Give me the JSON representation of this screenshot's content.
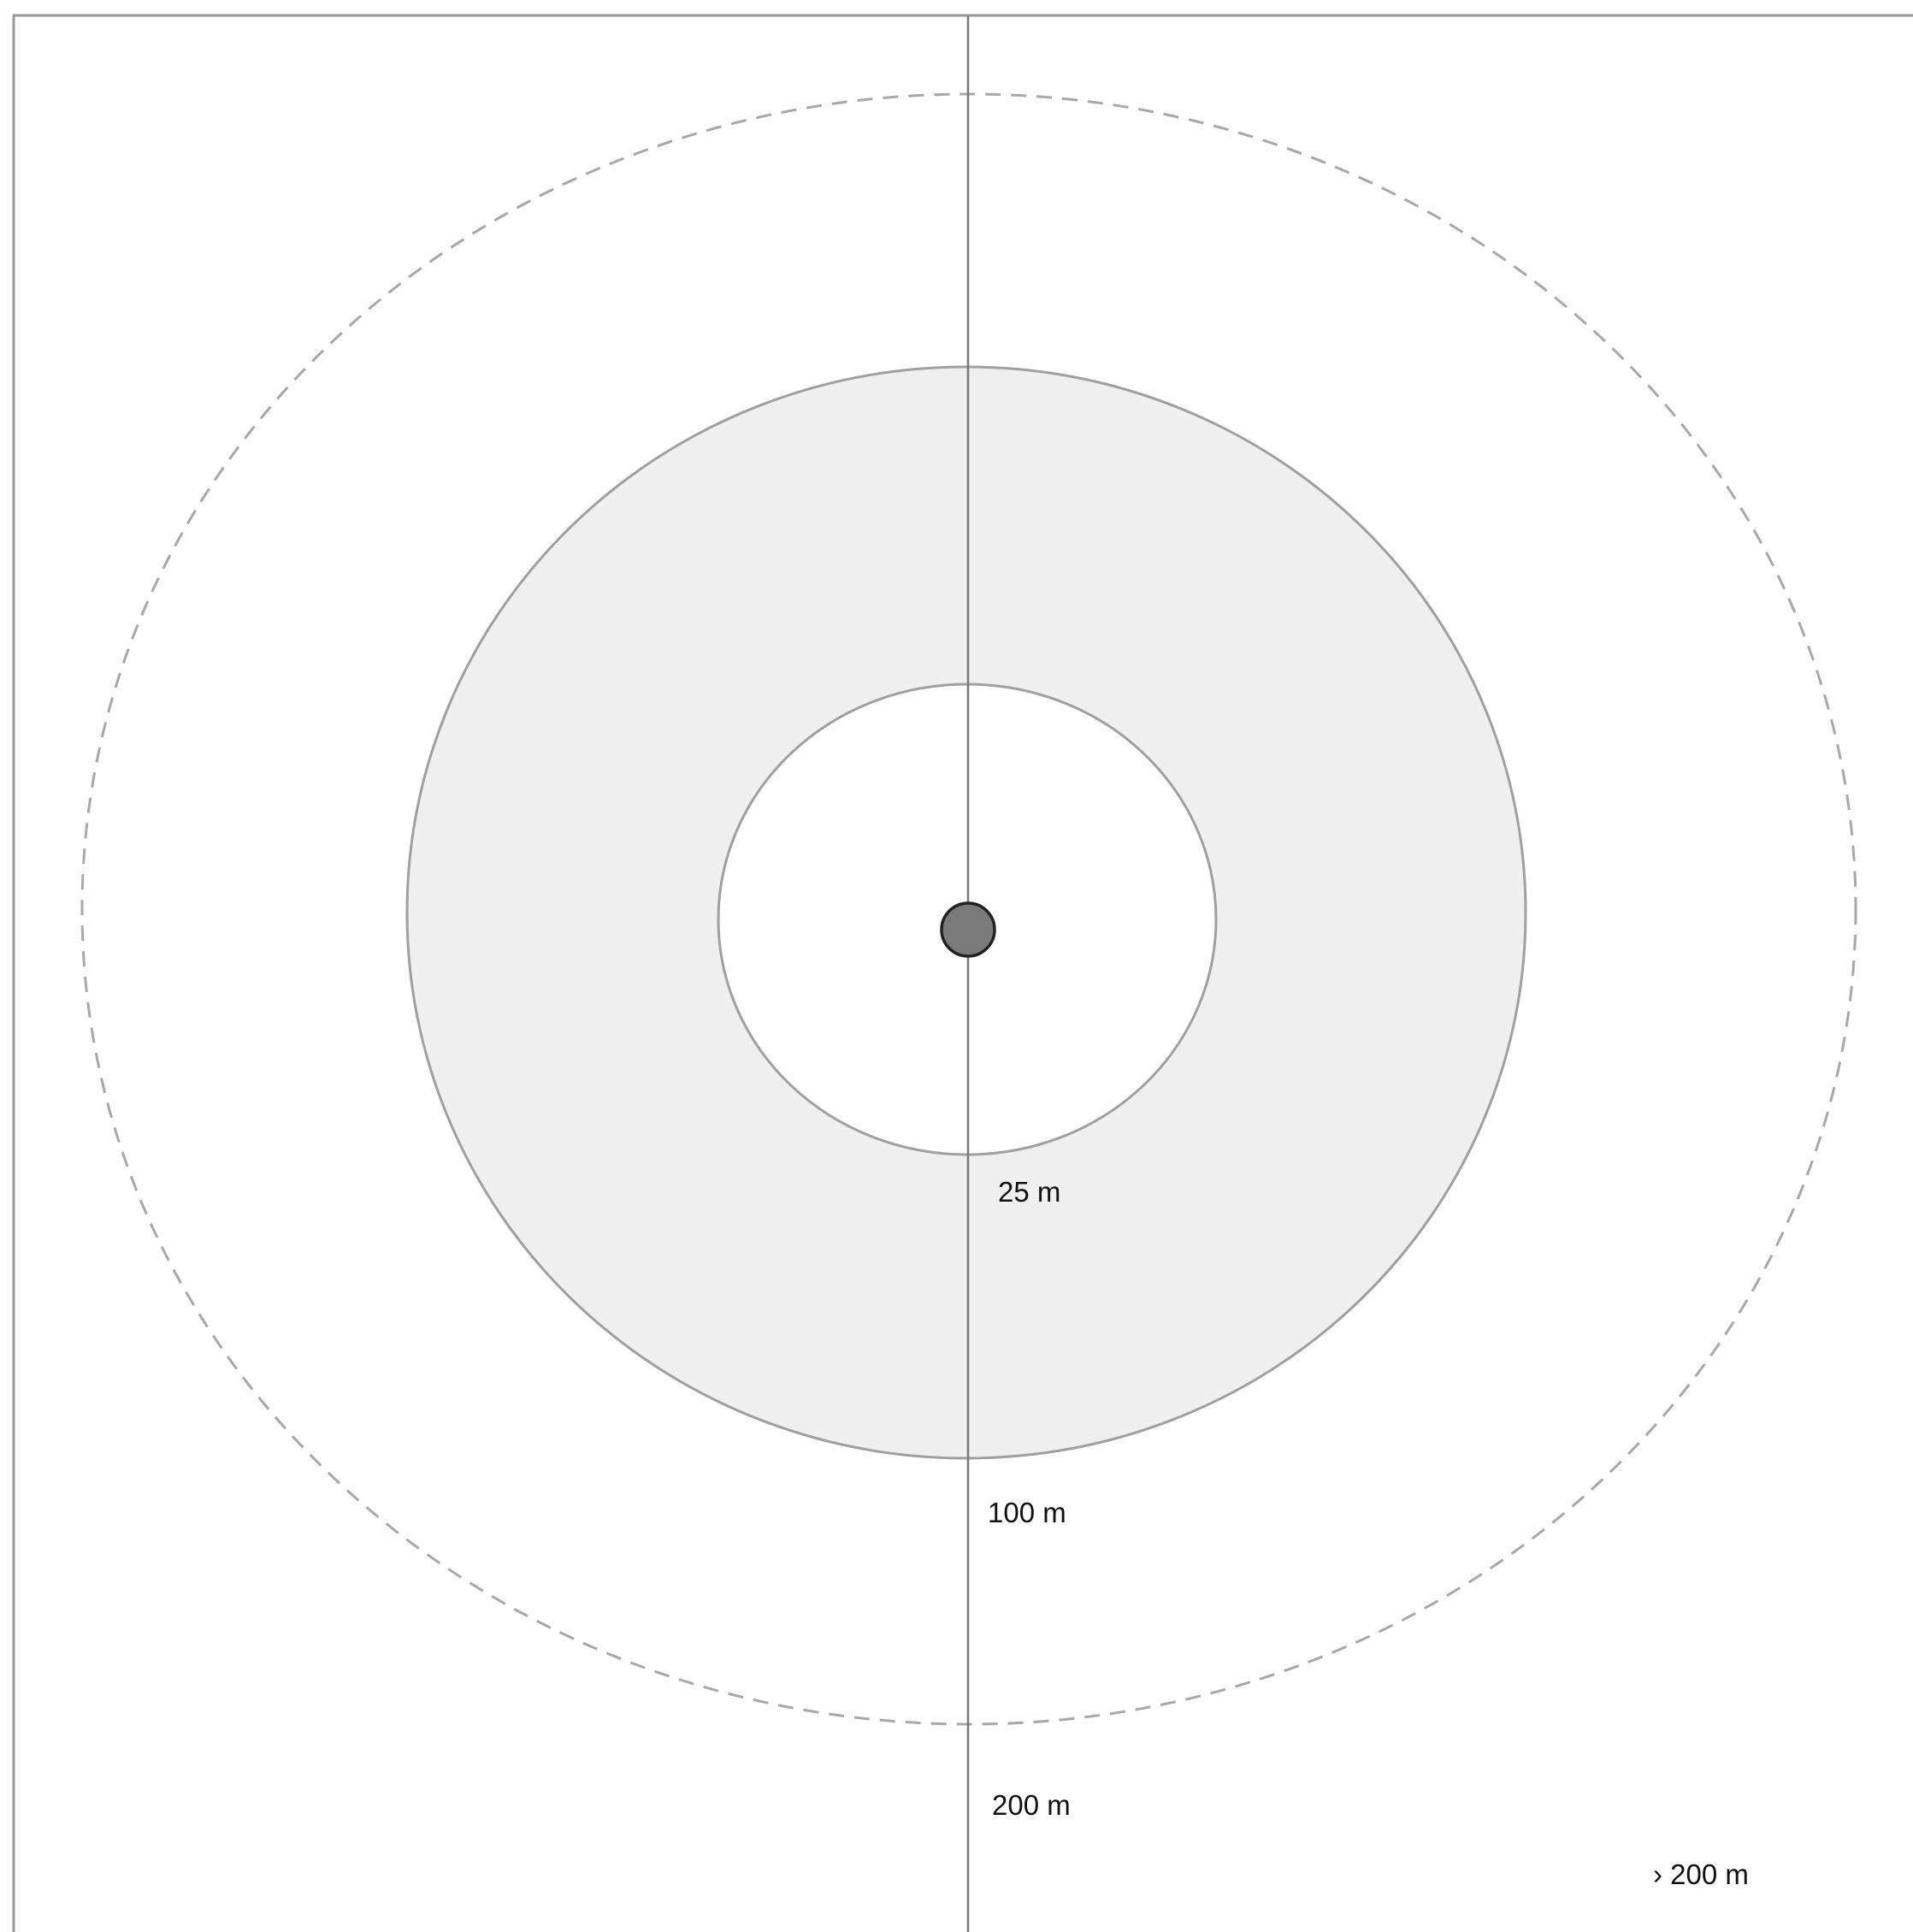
{
  "zones": [
    {
      "id": "inner",
      "label": "25 m",
      "radius_m": 25,
      "fill": "#ffffff",
      "stroke": "#a0a0a0",
      "dashed": false
    },
    {
      "id": "middle",
      "label": "100 m",
      "radius_m": 100,
      "fill": "#f0f0f0",
      "stroke": "#a0a0a0",
      "dashed": false
    },
    {
      "id": "outer",
      "label": "200 m",
      "radius_m": 200,
      "fill": "none",
      "stroke": "#a8a8a8",
      "dashed": true
    }
  ],
  "beyond_label": "› 200 m",
  "colors": {
    "frame": "#999999",
    "axis": "#777777",
    "center_fill": "#7a7a7a",
    "center_stroke": "#222222"
  }
}
